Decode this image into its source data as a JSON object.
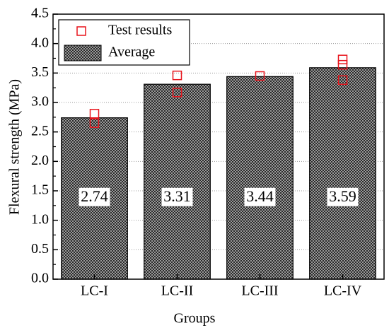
{
  "chart_data": {
    "type": "bar",
    "x_label": "Groups",
    "y_label": "Flexural strength (MPa)",
    "categories": [
      "LC-I",
      "LC-II",
      "LC-III",
      "LC-IV"
    ],
    "series": [
      {
        "name": "Average",
        "type": "bar",
        "color": "#555555",
        "values": [
          2.74,
          3.31,
          3.44,
          3.59
        ]
      },
      {
        "name": "Test results",
        "type": "scatter",
        "color": "#e8141c",
        "x": [
          "LC-I",
          "LC-I",
          "LC-II",
          "LC-II",
          "LC-III",
          "LC-IV",
          "LC-IV",
          "LC-IV"
        ],
        "values": [
          2.81,
          2.65,
          3.46,
          3.17,
          3.45,
          3.73,
          3.64,
          3.38
        ]
      }
    ],
    "ylim": [
      0,
      4.5
    ],
    "yticks": [
      {
        "value": 0,
        "label": "0.0"
      },
      0.5,
      {
        "value": 1,
        "label": "1.0"
      },
      1.5,
      {
        "value": 2,
        "label": "2.0"
      },
      2.5,
      {
        "value": 3,
        "label": "3.0"
      },
      3.5,
      {
        "value": 4,
        "label": "4.0"
      },
      4.5
    ],
    "grid": true,
    "legend": "upper left"
  }
}
